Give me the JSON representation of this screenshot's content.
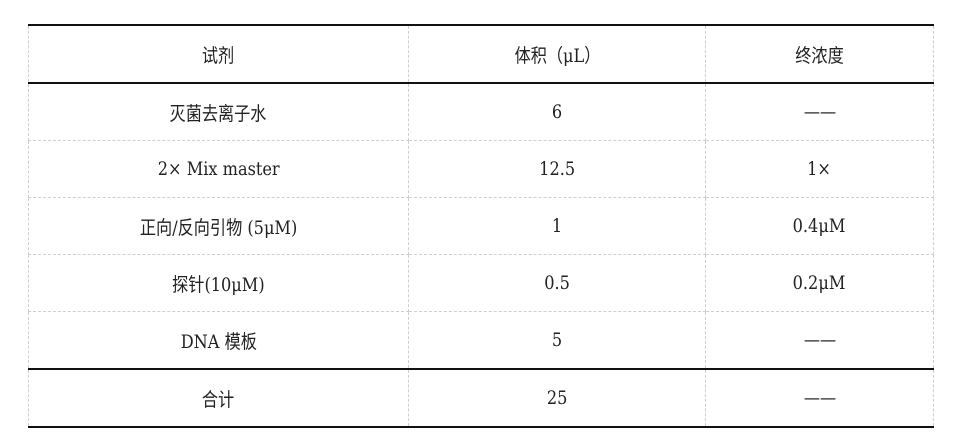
{
  "table": {
    "headers": [
      "试剂",
      "体积（μL）",
      "终浓度"
    ],
    "rows": [
      [
        "灭菌去离子水",
        "6",
        "——"
      ],
      [
        "2× Mix master",
        "12.5",
        "1×"
      ],
      [
        "正向/反向引物 (5μM)",
        "1",
        "0.4μM"
      ],
      [
        "探针(10μM)",
        "0.5",
        "0.2μM"
      ],
      [
        "DNA 模板",
        "5",
        "——"
      ]
    ],
    "total": [
      "合计",
      "25",
      "——"
    ]
  }
}
